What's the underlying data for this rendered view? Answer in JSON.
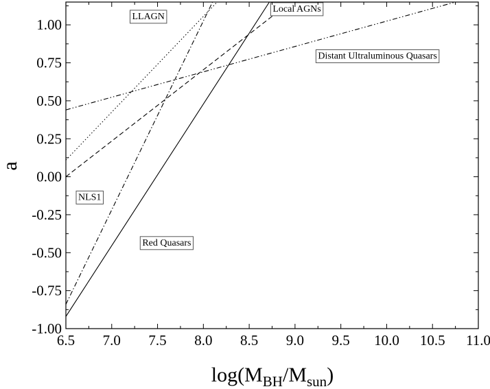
{
  "chart_data": {
    "type": "line",
    "xlabel": "log(M",
    "xlabel_sub1": "BH",
    "xlabel_mid": "/M",
    "xlabel_sub2": "sun",
    "xlabel_end": ")",
    "ylabel": "a",
    "xlim": [
      6.5,
      11.0
    ],
    "ylim": [
      -1.0,
      1.15
    ],
    "x_ticks": [
      6.5,
      7.0,
      7.5,
      8.0,
      8.5,
      9.0,
      9.5,
      10.0,
      10.5,
      11.0
    ],
    "x_tick_labels": [
      "6.5",
      "7.0",
      "7.5",
      "8.0",
      "8.5",
      "9.0",
      "9.5",
      "10.0",
      "10.5",
      "11.0"
    ],
    "y_ticks": [
      -1.0,
      -0.75,
      -0.5,
      -0.25,
      0.0,
      0.25,
      0.5,
      0.75,
      1.0
    ],
    "y_tick_labels": [
      "-1.00",
      "-0.75",
      "-0.50",
      "-0.25",
      "0.00",
      "0.25",
      "0.50",
      "0.75",
      "1.00"
    ],
    "grid": false,
    "series": [
      {
        "name": "Red Quasars",
        "dash": "solid",
        "x": [
          6.5,
          8.72
        ],
        "y": [
          -0.92,
          1.15
        ]
      },
      {
        "name": "NLS1",
        "dash": "dashdot",
        "x": [
          6.5,
          8.1
        ],
        "y": [
          -0.84,
          1.15
        ]
      },
      {
        "name": "LLAGN",
        "dash": "dot",
        "x": [
          6.5,
          8.15
        ],
        "y": [
          0.11,
          1.15
        ]
      },
      {
        "name": "Local AGNs",
        "dash": "dash",
        "x": [
          6.5,
          8.95
        ],
        "y": [
          0.0,
          1.15
        ]
      },
      {
        "name": "Distant Ultraluminous Quasars",
        "dash": "dashdotdot",
        "x": [
          6.5,
          10.75
        ],
        "y": [
          0.44,
          1.15
        ]
      }
    ],
    "annotations": [
      {
        "text": "LLAGN",
        "x": 7.4,
        "y": 1.06
      },
      {
        "text": "Local AGNs",
        "x": 9.02,
        "y": 1.11
      },
      {
        "text": "Distant Ultraluminous Quasars",
        "x": 9.9,
        "y": 0.8
      },
      {
        "text": "NLS1",
        "x": 6.76,
        "y": -0.13
      },
      {
        "text": "Red Quasars",
        "x": 7.6,
        "y": -0.43
      }
    ]
  }
}
